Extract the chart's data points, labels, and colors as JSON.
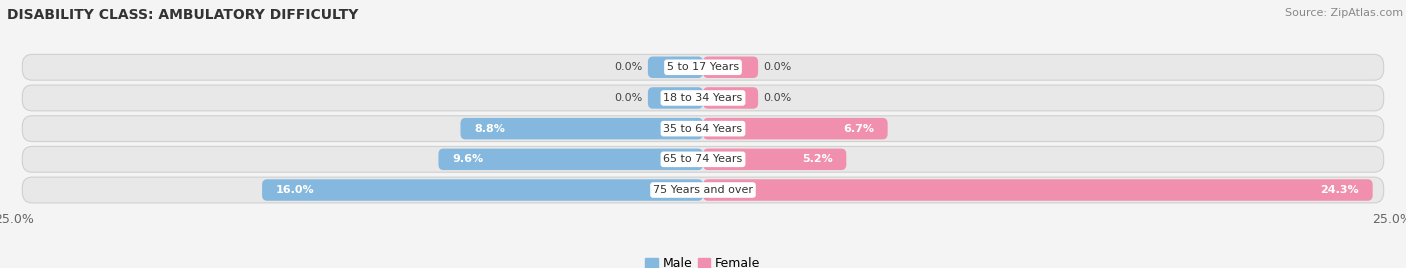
{
  "title": "DISABILITY CLASS: AMBULATORY DIFFICULTY",
  "source": "Source: ZipAtlas.com",
  "categories": [
    "5 to 17 Years",
    "18 to 34 Years",
    "35 to 64 Years",
    "65 to 74 Years",
    "75 Years and over"
  ],
  "male_values": [
    0.0,
    0.0,
    8.8,
    9.6,
    16.0
  ],
  "female_values": [
    0.0,
    0.0,
    6.7,
    5.2,
    24.3
  ],
  "max_value": 25.0,
  "male_color": "#85b8df",
  "female_color": "#f090ae",
  "row_bg_color": "#e8e8e8",
  "row_border_color": "#d0d0d0",
  "fig_bg_color": "#f4f4f4",
  "title_color": "#333333",
  "source_color": "#888888",
  "label_dark_color": "#444444",
  "label_light_color": "#ffffff",
  "category_bg_color": "#ffffff",
  "title_fontsize": 10,
  "source_fontsize": 8,
  "label_fontsize": 8,
  "category_fontsize": 8,
  "legend_fontsize": 9,
  "axis_label_fontsize": 9,
  "threshold_inside": 2.5,
  "zero_stub": 2.0
}
